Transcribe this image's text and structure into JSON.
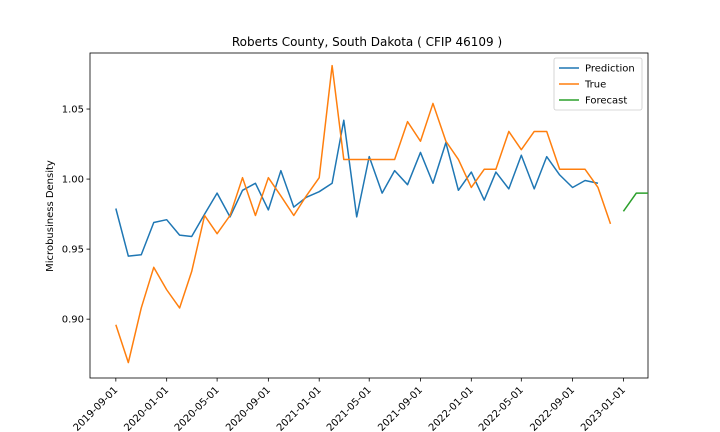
{
  "chart_data": {
    "type": "line",
    "title": "Roberts County, South Dakota ( CFIP 46109 )",
    "xlabel": "",
    "ylabel": "Microbusiness Density",
    "x_ticks": [
      "2019-09-01",
      "2020-01-01",
      "2020-05-01",
      "2020-09-01",
      "2021-01-01",
      "2021-05-01",
      "2021-09-01",
      "2022-01-01",
      "2022-05-01",
      "2022-09-01",
      "2023-01-01"
    ],
    "y_ticks": [
      0.9,
      0.95,
      1.0,
      1.05
    ],
    "y_tick_labels": [
      "0.90",
      "0.95",
      "1.00",
      "1.05"
    ],
    "xlim": [
      "2019-07-01",
      "2023-03-01"
    ],
    "ylim": [
      0.858,
      1.09
    ],
    "legend_position": "top-right",
    "series": [
      {
        "name": "Prediction",
        "color": "#1f77b4",
        "x": [
          "2019-09-01",
          "2019-10-01",
          "2019-11-01",
          "2019-12-01",
          "2020-01-01",
          "2020-02-01",
          "2020-03-01",
          "2020-04-01",
          "2020-05-01",
          "2020-06-01",
          "2020-07-01",
          "2020-08-01",
          "2020-09-01",
          "2020-10-01",
          "2020-11-01",
          "2020-12-01",
          "2021-01-01",
          "2021-02-01",
          "2021-03-01",
          "2021-04-01",
          "2021-05-01",
          "2021-06-01",
          "2021-07-01",
          "2021-08-01",
          "2021-09-01",
          "2021-10-01",
          "2021-11-01",
          "2021-12-01",
          "2022-01-01",
          "2022-02-01",
          "2022-03-01",
          "2022-04-01",
          "2022-05-01",
          "2022-06-01",
          "2022-07-01",
          "2022-08-01",
          "2022-09-01",
          "2022-10-01",
          "2022-11-01"
        ],
        "values": [
          0.979,
          0.945,
          0.946,
          0.969,
          0.971,
          0.96,
          0.959,
          0.975,
          0.99,
          0.973,
          0.992,
          0.997,
          0.978,
          1.006,
          0.98,
          0.987,
          0.991,
          0.997,
          1.042,
          0.973,
          1.016,
          0.99,
          1.006,
          0.996,
          1.019,
          0.997,
          1.026,
          0.992,
          1.005,
          0.985,
          1.005,
          0.993,
          1.017,
          0.993,
          1.016,
          1.003,
          0.994,
          0.999,
          0.997
        ]
      },
      {
        "name": "True",
        "color": "#ff7f0e",
        "x": [
          "2019-09-01",
          "2019-10-01",
          "2019-11-01",
          "2019-12-01",
          "2020-01-01",
          "2020-02-01",
          "2020-03-01",
          "2020-04-01",
          "2020-05-01",
          "2020-06-01",
          "2020-07-01",
          "2020-08-01",
          "2020-09-01",
          "2020-10-01",
          "2020-11-01",
          "2020-12-01",
          "2021-01-01",
          "2021-02-01",
          "2021-03-01",
          "2021-04-01",
          "2021-05-01",
          "2021-06-01",
          "2021-07-01",
          "2021-08-01",
          "2021-09-01",
          "2021-10-01",
          "2021-11-01",
          "2021-12-01",
          "2022-01-01",
          "2022-02-01",
          "2022-03-01",
          "2022-04-01",
          "2022-05-01",
          "2022-06-01",
          "2022-07-01",
          "2022-08-01",
          "2022-09-01",
          "2022-10-01",
          "2022-11-01",
          "2022-12-01"
        ],
        "values": [
          0.896,
          0.869,
          0.908,
          0.937,
          0.921,
          0.908,
          0.934,
          0.974,
          0.961,
          0.974,
          1.001,
          0.974,
          1.001,
          0.988,
          0.974,
          0.988,
          1.001,
          1.081,
          1.014,
          1.014,
          1.014,
          1.014,
          1.014,
          1.041,
          1.027,
          1.054,
          1.027,
          1.014,
          0.994,
          1.007,
          1.007,
          1.034,
          1.021,
          1.034,
          1.034,
          1.007,
          1.007,
          1.007,
          0.994,
          0.968
        ]
      },
      {
        "name": "Forecast",
        "color": "#2ca02c",
        "x": [
          "2023-01-01",
          "2023-02-01",
          "2023-03-01"
        ],
        "values": [
          0.977,
          0.99,
          0.99
        ]
      }
    ]
  }
}
